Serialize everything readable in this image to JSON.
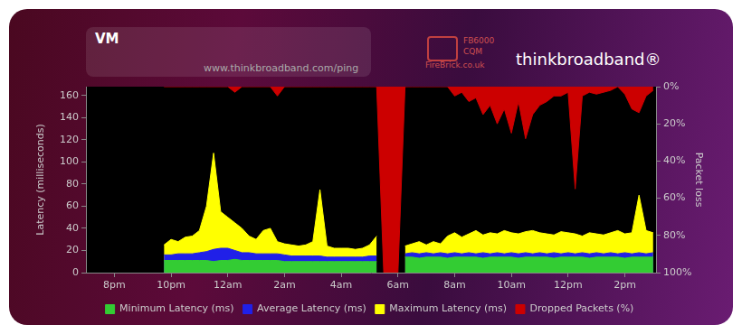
{
  "chart_data": {
    "type": "area",
    "title": "VM",
    "annotations": [
      "www.thinkbroadband.com/ping",
      "FB6000",
      "CQM",
      "FireBrick.co.uk",
      "thinkbroadband®"
    ],
    "y_label": "Latency (milliseconds)",
    "y2_label": "Packet loss",
    "x": [
      21.75,
      22.0,
      22.25,
      22.5,
      22.75,
      23.0,
      23.25,
      23.5,
      23.75,
      24.0,
      24.25,
      24.5,
      24.75,
      25.0,
      25.25,
      25.5,
      25.75,
      26.0,
      26.25,
      26.5,
      26.75,
      27.0,
      27.25,
      27.5,
      27.75,
      28.0,
      28.25,
      28.5,
      28.75,
      29.0,
      29.25,
      29.5,
      29.75,
      30.0,
      30.25,
      30.5,
      30.75,
      31.0,
      31.25,
      31.5,
      31.75,
      32.0,
      32.25,
      32.5,
      32.75,
      33.0,
      33.25,
      33.5,
      33.75,
      34.0,
      34.25,
      34.5,
      34.75,
      35.0,
      35.25,
      35.5,
      35.75,
      36.0,
      36.25,
      36.5,
      36.75,
      37.0,
      37.25,
      37.5,
      37.75,
      38.0,
      38.25,
      38.5,
      38.75,
      39.0
    ],
    "series": [
      {
        "name": "Minimum Latency (ms)",
        "color": "#33cc33",
        "values": [
          11,
          11,
          11,
          11,
          11,
          11,
          11,
          10,
          11,
          11,
          12,
          11,
          11,
          11,
          11,
          11,
          11,
          10,
          10,
          10,
          10,
          10,
          10,
          10,
          10,
          10,
          10,
          10,
          10,
          10,
          10,
          null,
          null,
          null,
          14,
          14,
          13,
          14,
          14,
          14,
          13,
          14,
          14,
          14,
          14,
          13,
          14,
          14,
          14,
          14,
          13,
          14,
          14,
          14,
          14,
          13,
          14,
          14,
          14,
          14,
          13,
          14,
          14,
          14,
          14,
          13,
          14,
          14,
          14,
          14
        ]
      },
      {
        "name": "Average Latency (ms)",
        "color": "#2020e8",
        "values": [
          16,
          16,
          17,
          17,
          17,
          18,
          19,
          21,
          22,
          22,
          20,
          18,
          18,
          17,
          17,
          17,
          17,
          16,
          15,
          15,
          15,
          15,
          15,
          14,
          14,
          14,
          14,
          14,
          14,
          15,
          15,
          null,
          null,
          null,
          17,
          18,
          17,
          18,
          17,
          18,
          17,
          18,
          17,
          18,
          17,
          18,
          17,
          18,
          17,
          18,
          17,
          18,
          17,
          18,
          17,
          18,
          17,
          18,
          17,
          18,
          17,
          18,
          17,
          18,
          17,
          18,
          17,
          18,
          17,
          18
        ]
      },
      {
        "name": "Maximum Latency (ms)",
        "color": "#ffff00",
        "values": [
          25,
          30,
          28,
          32,
          33,
          38,
          60,
          108,
          55,
          50,
          45,
          40,
          33,
          30,
          38,
          40,
          28,
          26,
          25,
          24,
          25,
          28,
          75,
          24,
          22,
          22,
          22,
          21,
          22,
          25,
          33,
          null,
          null,
          null,
          24,
          26,
          28,
          25,
          28,
          26,
          33,
          36,
          32,
          35,
          38,
          34,
          36,
          35,
          38,
          36,
          35,
          37,
          38,
          36,
          35,
          34,
          37,
          36,
          35,
          33,
          36,
          35,
          34,
          36,
          38,
          35,
          36,
          70,
          38,
          36
        ]
      },
      {
        "name": "Dropped Packets (%)",
        "color": "#cc0000",
        "axis": "y2",
        "values": [
          0,
          0,
          0,
          0,
          0,
          0,
          0,
          0,
          0,
          0,
          3,
          0,
          0,
          0,
          0,
          0,
          5,
          0,
          0,
          0,
          0,
          0,
          0,
          0,
          0,
          0,
          0,
          0,
          0,
          0,
          0,
          100,
          100,
          100,
          0,
          0,
          0,
          0,
          0,
          0,
          0,
          5,
          3,
          8,
          6,
          15,
          10,
          20,
          12,
          25,
          8,
          28,
          15,
          10,
          8,
          5,
          5,
          3,
          55,
          5,
          3,
          4,
          3,
          2,
          0,
          4,
          12,
          14,
          5,
          2
        ]
      }
    ],
    "xlim": [
      19,
      39.1
    ],
    "xticks": [
      {
        "value": 20,
        "label": "8pm"
      },
      {
        "value": 22,
        "label": "10pm"
      },
      {
        "value": 24,
        "label": "12am"
      },
      {
        "value": 26,
        "label": "2am"
      },
      {
        "value": 28,
        "label": "4am"
      },
      {
        "value": 30,
        "label": "6am"
      },
      {
        "value": 32,
        "label": "8am"
      },
      {
        "value": 34,
        "label": "10am"
      },
      {
        "value": 36,
        "label": "12pm"
      },
      {
        "value": 38,
        "label": "2pm"
      }
    ],
    "ylim": [
      0,
      168
    ],
    "yticks": [
      0,
      20,
      40,
      60,
      80,
      100,
      120,
      140,
      160
    ],
    "y2lim": [
      100,
      0
    ],
    "y2ticks": [
      {
        "value": 0,
        "label": "0%"
      },
      {
        "value": 20,
        "label": "20%"
      },
      {
        "value": 40,
        "label": "40%"
      },
      {
        "value": 60,
        "label": "60%"
      },
      {
        "value": 80,
        "label": "80%"
      },
      {
        "value": 100,
        "label": "100%"
      }
    ],
    "grid": false,
    "legend": "bottom"
  }
}
